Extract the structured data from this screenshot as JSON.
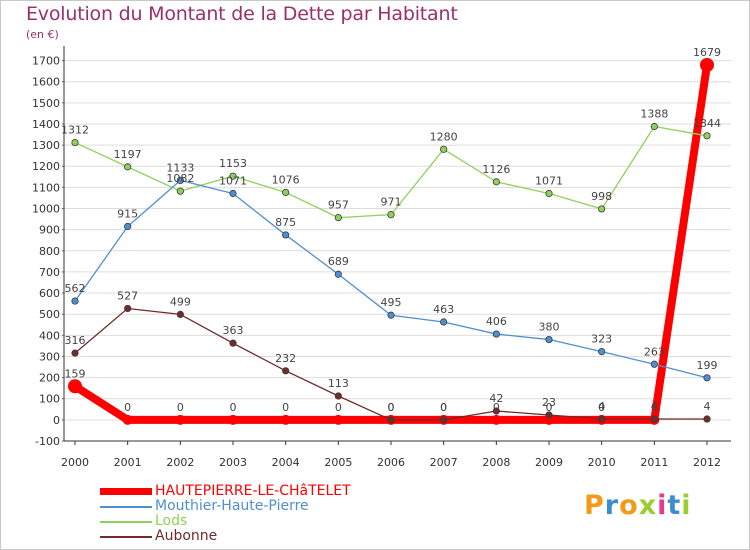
{
  "title": "Evolution du Montant de la Dette par Habitant",
  "unit": "(en €)",
  "logo": {
    "text": "Proxiti",
    "letter_colors": [
      "#f39a1b",
      "#3a8fd0",
      "#f39a1b",
      "#9acd32",
      "#e63a8a",
      "#3a8fd0",
      "#9acd32"
    ]
  },
  "colors": {
    "title": "#9b2f6e",
    "axis": "#333333",
    "grid": "#dddddd"
  },
  "chart_data": {
    "type": "line",
    "x": [
      "2000",
      "2001",
      "2002",
      "2003",
      "2004",
      "2005",
      "2006",
      "2007",
      "2008",
      "2009",
      "2010",
      "2011",
      "2012"
    ],
    "ylim": [
      -100,
      1750
    ],
    "yticks": [
      -100,
      0,
      100,
      200,
      300,
      400,
      500,
      600,
      700,
      800,
      900,
      1000,
      1100,
      1200,
      1300,
      1400,
      1500,
      1600,
      1700
    ],
    "grid": "horizontal",
    "legend_position": "bottom-left",
    "series": [
      {
        "name": "HAUTEPIERRE-LE-CHâTELET",
        "color": "#ff0000",
        "width": "thick",
        "values": [
          159,
          0,
          0,
          0,
          0,
          0,
          0,
          0,
          0,
          0,
          0,
          0,
          1679
        ],
        "labels": [
          "159",
          "0",
          "0",
          "0",
          "0",
          "0",
          "0",
          "0",
          "0",
          "0",
          "0",
          "0",
          "1679"
        ]
      },
      {
        "name": "Mouthier-Haute-Pierre",
        "color": "#4f8fd1",
        "width": "thin",
        "values": [
          562,
          915,
          1133,
          1071,
          875,
          689,
          495,
          463,
          406,
          380,
          323,
          263,
          199
        ],
        "labels": [
          "562",
          "915",
          "1133",
          "1071",
          "875",
          "689",
          "495",
          "463",
          "406",
          "380",
          "323",
          "263",
          "199"
        ]
      },
      {
        "name": "Lods",
        "color": "#8fd15a",
        "width": "thin",
        "values": [
          1312,
          1197,
          1082,
          1153,
          1076,
          957,
          971,
          1280,
          1126,
          1071,
          998,
          1388,
          1344
        ],
        "labels": [
          "1312",
          "1197",
          "1082",
          "1153",
          "1076",
          "957",
          "971",
          "1280",
          "1126",
          "1071",
          "998",
          "1388",
          "1344"
        ]
      },
      {
        "name": "Aubonne",
        "color": "#722a2a",
        "width": "thin",
        "values": [
          316,
          527,
          499,
          363,
          232,
          113,
          0,
          0,
          42,
          23,
          4,
          4,
          4
        ],
        "labels": [
          "316",
          "527",
          "499",
          "363",
          "232",
          "113",
          "0",
          "0",
          "42",
          "23",
          "4",
          "4",
          "4"
        ]
      }
    ]
  }
}
